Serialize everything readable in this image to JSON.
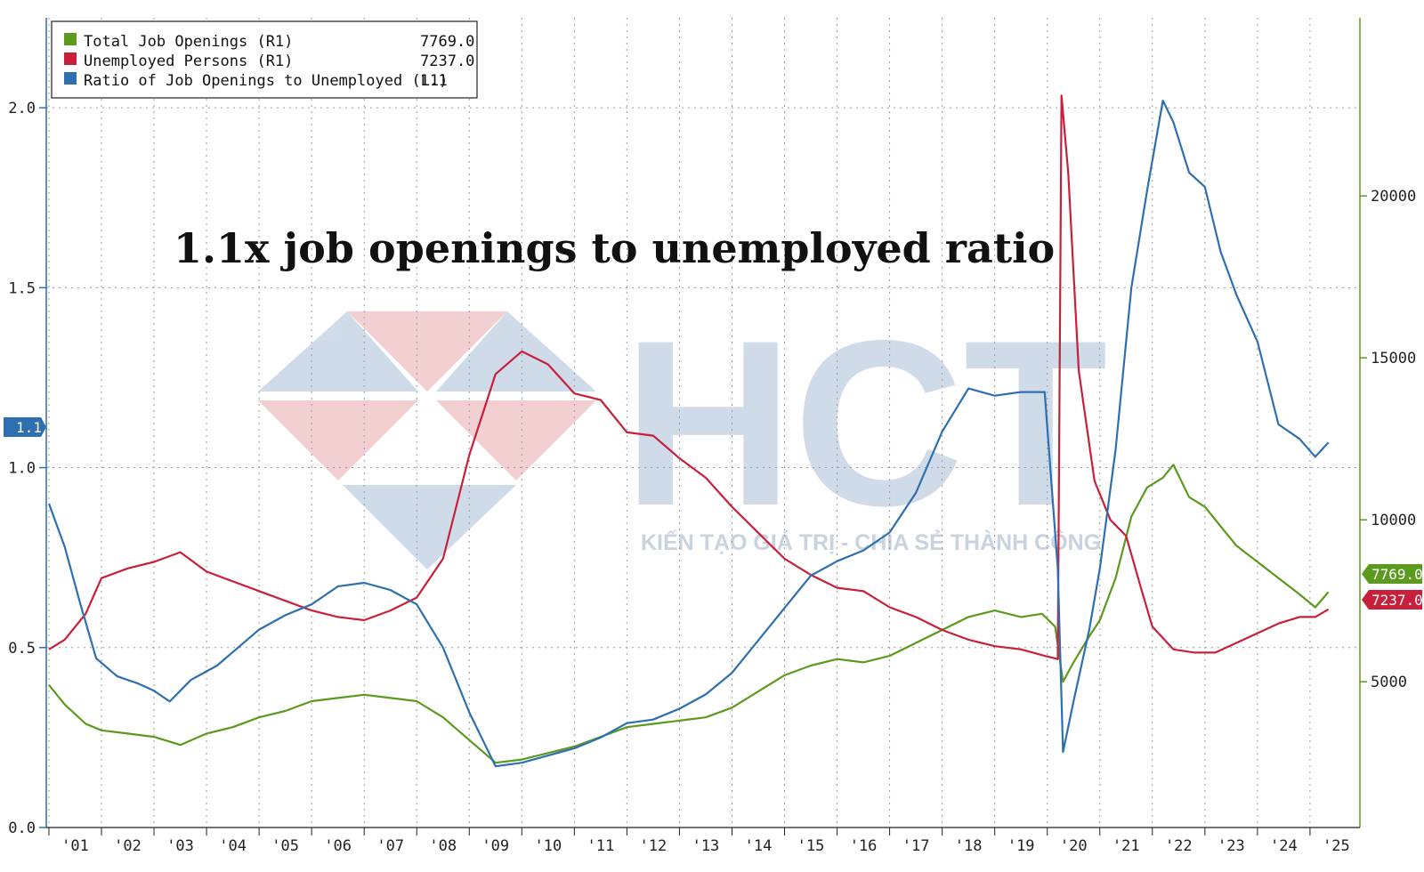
{
  "headline": "1.1x job openings to unemployed ratio",
  "watermark": {
    "logo_text": "HCT",
    "tagline": "KIẾN TẠO GIÁ TRỊ - CHIA SẺ THÀNH CÔNG"
  },
  "legend": {
    "rows": [
      {
        "label": "Total Job Openings (R1)",
        "value": "7769.0",
        "color": "#5b9a1e"
      },
      {
        "label": "Unemployed Persons (R1)",
        "value": "7237.0",
        "color": "#c8203b"
      },
      {
        "label": "Ratio of Job Openings to Unemployed (L1)",
        "value": "1.1",
        "color": "#2e6fb0"
      }
    ]
  },
  "badges": {
    "ratio": "1.1",
    "openings": "7769.0",
    "unemployed": "7237.0"
  },
  "chart_data": {
    "type": "line",
    "x_tick_labels": [
      "'01",
      "'02",
      "'03",
      "'04",
      "'05",
      "'06",
      "'07",
      "'08",
      "'09",
      "'10",
      "'11",
      "'12",
      "'13",
      "'14",
      "'15",
      "'16",
      "'17",
      "'18",
      "'19",
      "'20",
      "'21",
      "'22",
      "'23",
      "'24",
      "'25"
    ],
    "x_range": [
      2000.95,
      2025.95
    ],
    "left_axis": {
      "ticks": [
        "0.0",
        "0.5",
        "1.0",
        "1.5",
        "2.0"
      ],
      "range": [
        0,
        2.25
      ]
    },
    "right_axis": {
      "ticks": [
        "5000",
        "10000",
        "15000",
        "20000"
      ],
      "range": [
        500,
        25500
      ]
    },
    "grid": true,
    "legend_position": "top-left",
    "series": [
      {
        "name": "Total Job Openings (R1)",
        "axis": "right",
        "color": "#5b9a1e",
        "points": [
          [
            2001.0,
            4900
          ],
          [
            2001.3,
            4300
          ],
          [
            2001.7,
            3700
          ],
          [
            2002.0,
            3500
          ],
          [
            2002.5,
            3400
          ],
          [
            2003.0,
            3300
          ],
          [
            2003.5,
            3050
          ],
          [
            2004.0,
            3400
          ],
          [
            2004.5,
            3600
          ],
          [
            2005.0,
            3900
          ],
          [
            2005.5,
            4100
          ],
          [
            2006.0,
            4400
          ],
          [
            2006.5,
            4500
          ],
          [
            2007.0,
            4600
          ],
          [
            2007.5,
            4500
          ],
          [
            2008.0,
            4400
          ],
          [
            2008.5,
            3900
          ],
          [
            2009.0,
            3200
          ],
          [
            2009.5,
            2500
          ],
          [
            2010.0,
            2600
          ],
          [
            2010.5,
            2800
          ],
          [
            2011.0,
            3000
          ],
          [
            2011.5,
            3300
          ],
          [
            2012.0,
            3600
          ],
          [
            2012.5,
            3700
          ],
          [
            2013.0,
            3800
          ],
          [
            2013.5,
            3900
          ],
          [
            2014.0,
            4200
          ],
          [
            2014.5,
            4700
          ],
          [
            2015.0,
            5200
          ],
          [
            2015.5,
            5500
          ],
          [
            2016.0,
            5700
          ],
          [
            2016.5,
            5600
          ],
          [
            2017.0,
            5800
          ],
          [
            2017.5,
            6200
          ],
          [
            2018.0,
            6600
          ],
          [
            2018.5,
            7000
          ],
          [
            2019.0,
            7200
          ],
          [
            2019.5,
            7000
          ],
          [
            2019.9,
            7100
          ],
          [
            2020.15,
            6700
          ],
          [
            2020.3,
            5000
          ],
          [
            2020.5,
            5600
          ],
          [
            2020.8,
            6400
          ],
          [
            2021.0,
            6900
          ],
          [
            2021.3,
            8200
          ],
          [
            2021.6,
            10100
          ],
          [
            2021.9,
            11000
          ],
          [
            2022.2,
            11300
          ],
          [
            2022.4,
            11700
          ],
          [
            2022.7,
            10700
          ],
          [
            2023.0,
            10400
          ],
          [
            2023.3,
            9800
          ],
          [
            2023.6,
            9200
          ],
          [
            2024.0,
            8700
          ],
          [
            2024.4,
            8200
          ],
          [
            2024.8,
            7700
          ],
          [
            2025.1,
            7300
          ],
          [
            2025.35,
            7769
          ]
        ]
      },
      {
        "name": "Unemployed Persons (R1)",
        "axis": "right",
        "color": "#c8203b",
        "points": [
          [
            2001.0,
            6000
          ],
          [
            2001.3,
            6300
          ],
          [
            2001.7,
            7100
          ],
          [
            2002.0,
            8200
          ],
          [
            2002.5,
            8500
          ],
          [
            2003.0,
            8700
          ],
          [
            2003.5,
            9000
          ],
          [
            2004.0,
            8400
          ],
          [
            2004.5,
            8100
          ],
          [
            2005.0,
            7800
          ],
          [
            2005.5,
            7500
          ],
          [
            2006.0,
            7200
          ],
          [
            2006.5,
            7000
          ],
          [
            2007.0,
            6900
          ],
          [
            2007.5,
            7200
          ],
          [
            2008.0,
            7600
          ],
          [
            2008.5,
            8800
          ],
          [
            2009.0,
            12000
          ],
          [
            2009.5,
            14500
          ],
          [
            2010.0,
            15200
          ],
          [
            2010.5,
            14800
          ],
          [
            2011.0,
            13900
          ],
          [
            2011.5,
            13700
          ],
          [
            2012.0,
            12700
          ],
          [
            2012.5,
            12600
          ],
          [
            2013.0,
            11900
          ],
          [
            2013.5,
            11300
          ],
          [
            2014.0,
            10400
          ],
          [
            2014.5,
            9600
          ],
          [
            2015.0,
            8800
          ],
          [
            2015.5,
            8300
          ],
          [
            2016.0,
            7900
          ],
          [
            2016.5,
            7800
          ],
          [
            2017.0,
            7300
          ],
          [
            2017.5,
            7000
          ],
          [
            2018.0,
            6600
          ],
          [
            2018.5,
            6300
          ],
          [
            2019.0,
            6100
          ],
          [
            2019.5,
            6000
          ],
          [
            2019.95,
            5800
          ],
          [
            2020.2,
            5700
          ],
          [
            2020.27,
            23100
          ],
          [
            2020.4,
            20700
          ],
          [
            2020.6,
            14600
          ],
          [
            2020.9,
            11200
          ],
          [
            2021.2,
            10000
          ],
          [
            2021.5,
            9500
          ],
          [
            2021.8,
            7800
          ],
          [
            2022.0,
            6700
          ],
          [
            2022.4,
            6000
          ],
          [
            2022.8,
            5900
          ],
          [
            2023.2,
            5900
          ],
          [
            2023.6,
            6200
          ],
          [
            2024.0,
            6500
          ],
          [
            2024.4,
            6800
          ],
          [
            2024.8,
            7000
          ],
          [
            2025.1,
            7000
          ],
          [
            2025.35,
            7237
          ]
        ]
      },
      {
        "name": "Ratio of Job Openings to Unemployed (L1)",
        "axis": "left",
        "color": "#2e6fb0",
        "points": [
          [
            2001.0,
            0.9
          ],
          [
            2001.3,
            0.78
          ],
          [
            2001.6,
            0.62
          ],
          [
            2001.9,
            0.47
          ],
          [
            2002.3,
            0.42
          ],
          [
            2002.7,
            0.4
          ],
          [
            2003.0,
            0.38
          ],
          [
            2003.3,
            0.35
          ],
          [
            2003.7,
            0.41
          ],
          [
            2004.2,
            0.45
          ],
          [
            2004.6,
            0.5
          ],
          [
            2005.0,
            0.55
          ],
          [
            2005.5,
            0.59
          ],
          [
            2006.0,
            0.62
          ],
          [
            2006.5,
            0.67
          ],
          [
            2007.0,
            0.68
          ],
          [
            2007.5,
            0.66
          ],
          [
            2008.0,
            0.62
          ],
          [
            2008.5,
            0.5
          ],
          [
            2009.0,
            0.32
          ],
          [
            2009.5,
            0.17
          ],
          [
            2010.0,
            0.18
          ],
          [
            2010.5,
            0.2
          ],
          [
            2011.0,
            0.22
          ],
          [
            2011.5,
            0.25
          ],
          [
            2012.0,
            0.29
          ],
          [
            2012.5,
            0.3
          ],
          [
            2013.0,
            0.33
          ],
          [
            2013.5,
            0.37
          ],
          [
            2014.0,
            0.43
          ],
          [
            2014.5,
            0.52
          ],
          [
            2015.0,
            0.61
          ],
          [
            2015.5,
            0.7
          ],
          [
            2016.0,
            0.74
          ],
          [
            2016.5,
            0.77
          ],
          [
            2017.0,
            0.82
          ],
          [
            2017.5,
            0.93
          ],
          [
            2018.0,
            1.1
          ],
          [
            2018.5,
            1.22
          ],
          [
            2019.0,
            1.2
          ],
          [
            2019.5,
            1.21
          ],
          [
            2019.95,
            1.21
          ],
          [
            2020.2,
            0.72
          ],
          [
            2020.3,
            0.21
          ],
          [
            2020.5,
            0.35
          ],
          [
            2020.8,
            0.55
          ],
          [
            2021.0,
            0.72
          ],
          [
            2021.3,
            1.05
          ],
          [
            2021.6,
            1.5
          ],
          [
            2021.9,
            1.77
          ],
          [
            2022.2,
            2.02
          ],
          [
            2022.4,
            1.96
          ],
          [
            2022.7,
            1.82
          ],
          [
            2023.0,
            1.78
          ],
          [
            2023.3,
            1.6
          ],
          [
            2023.6,
            1.48
          ],
          [
            2024.0,
            1.35
          ],
          [
            2024.4,
            1.12
          ],
          [
            2024.8,
            1.08
          ],
          [
            2025.1,
            1.03
          ],
          [
            2025.35,
            1.07
          ]
        ]
      }
    ]
  }
}
